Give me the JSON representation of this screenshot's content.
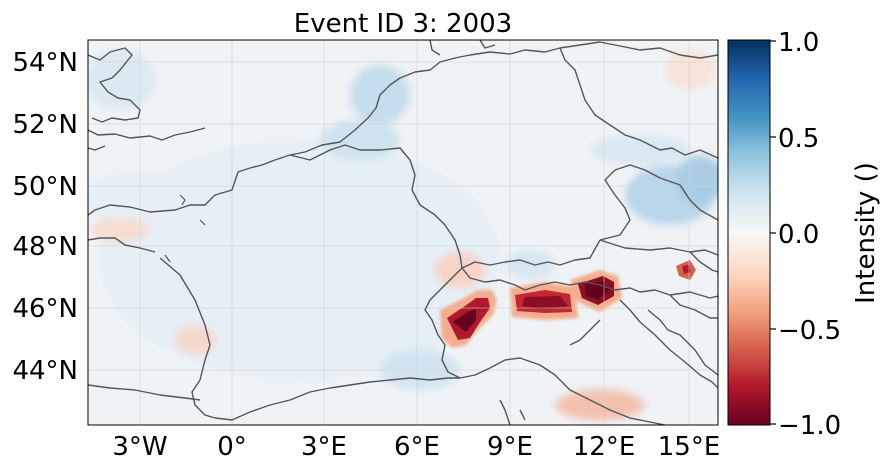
{
  "map": {
    "title": "Event ID 3: 2003",
    "lat_labels": [
      "54°N",
      "52°N",
      "50°N",
      "48°N",
      "46°N",
      "44°N"
    ],
    "lon_labels": [
      "3°W",
      "0°",
      "3°E",
      "6°E",
      "9°E",
      "12°E",
      "15°E"
    ],
    "lon_range": [
      -5.5,
      15.7
    ],
    "lat_range": [
      42.2,
      54.7
    ],
    "gridlines": true,
    "coastline_color": "#555555",
    "background_color": "#f4f6f7"
  },
  "colorbar": {
    "label": "Intensity ()",
    "ticks": [
      "1.0",
      "0.5",
      "0.0",
      "−0.5",
      "−1.0"
    ],
    "range": [
      -1.0,
      1.0
    ],
    "colormap": "RdBu",
    "colors": [
      "#67001f",
      "#b2182b",
      "#d6604d",
      "#f4a582",
      "#fddbc7",
      "#f7f7f7",
      "#d1e5f0",
      "#92c5de",
      "#4393c3",
      "#2166ac",
      "#053061"
    ]
  }
}
